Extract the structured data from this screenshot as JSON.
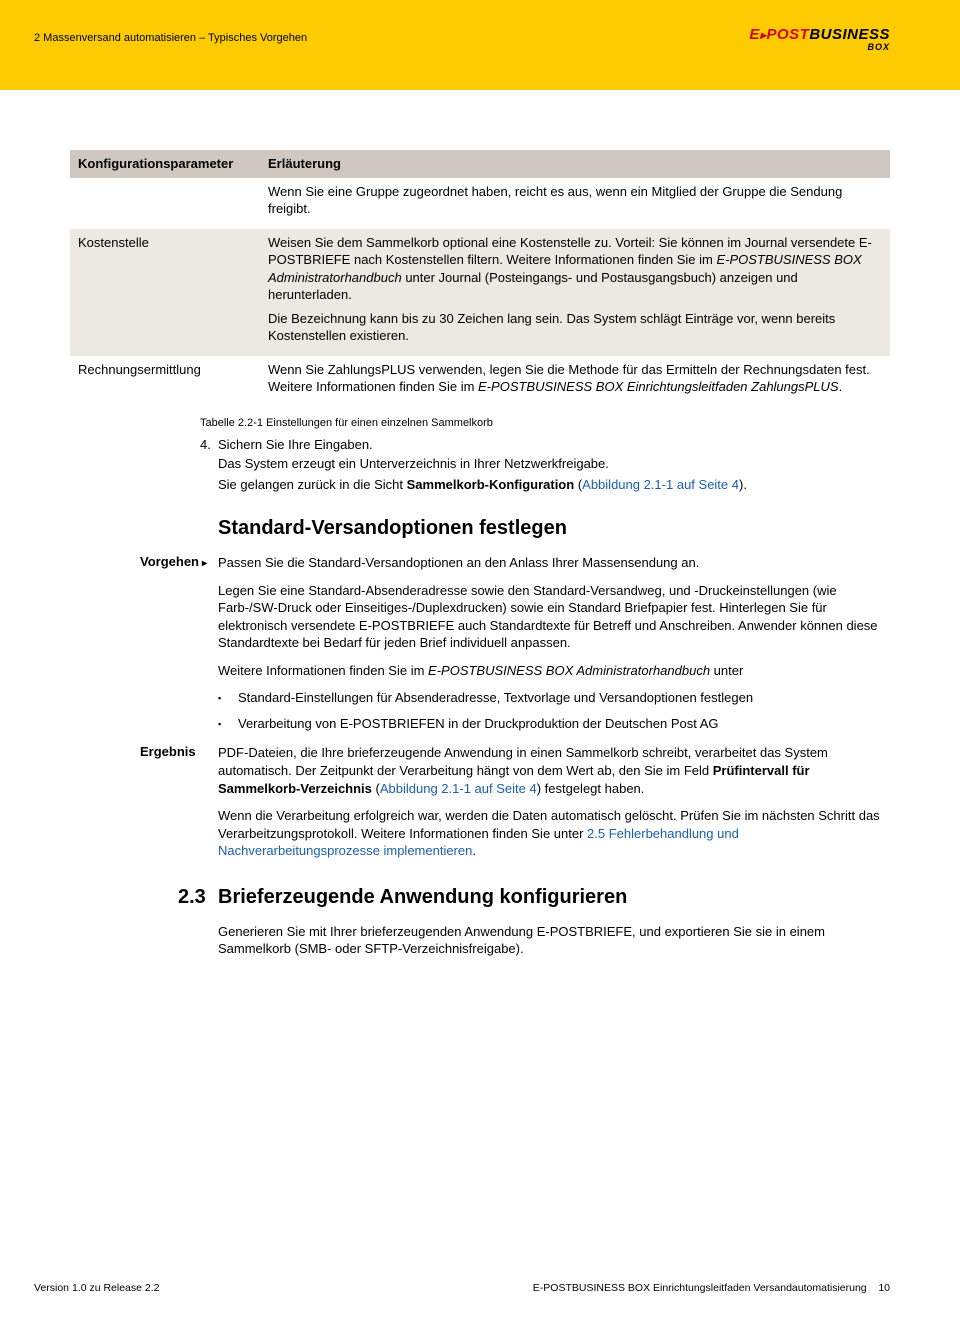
{
  "header": {
    "breadcrumb": "2    Massenversand automatisieren – Typisches Vorgehen",
    "logo_e": "E",
    "logo_post": "POST",
    "logo_business": "BUSINESS",
    "logo_sub": "BOX"
  },
  "table": {
    "header_param": "Konfigurationsparameter",
    "header_desc": "Erläuterung",
    "rows": [
      {
        "param": "",
        "desc_paras": [
          "Wenn Sie eine Gruppe zugeordnet haben, reicht es aus, wenn ein Mitglied der Gruppe die Sendung freigibt."
        ]
      },
      {
        "param": "Kostenstelle",
        "desc_paras": [
          "Weisen Sie dem Sammelkorb optional eine Kostenstelle zu. Vorteil: Sie können im Journal versendete E-POSTBRIEFE nach Kostenstellen filtern. Weitere Informationen finden Sie im E-POSTBUSINESS BOX Administratorhandbuch unter Journal (Posteingangs- und Postausgangsbuch) anzeigen und herunterladen.",
          "Die Bezeichnung kann bis zu 30 Zeichen lang sein. Das System schlägt Einträge vor, wenn bereits Kostenstellen existieren."
        ]
      },
      {
        "param": "Rechnungsermittlung",
        "desc_paras": [
          "Wenn Sie ZahlungsPLUS verwenden, legen Sie die Methode für das Ermitteln der Rechnungsdaten fest. Weitere Informationen finden Sie im E-POSTBUSINESS BOX Einrichtungsleitfaden ZahlungsPLUS."
        ]
      }
    ],
    "caption": "Tabelle 2.2-1 Einstellungen für einen einzelnen Sammelkorb"
  },
  "step4": {
    "num": "4.",
    "text": "Sichern Sie Ihre Eingaben."
  },
  "after_step": {
    "p1": "Das System erzeugt ein Unterverzeichnis in Ihrer Netzwerkfreigabe.",
    "p2a": "Sie gelangen zurück in die Sicht ",
    "p2b": "Sammelkorb-Konfiguration",
    "p2c": " (",
    "p2link": "Abbildung 2.1-1 auf Seite 4",
    "p2d": ")."
  },
  "h2_standard": "Standard-Versandoptionen festlegen",
  "vorgehen": {
    "label": "Vorgehen",
    "p1": "Passen Sie die Standard-Versandoptionen an den Anlass Ihrer Massensendung an.",
    "p2": "Legen Sie eine Standard-Absenderadresse sowie den Standard-Versandweg, und -Druckeinstellungen (wie Farb-/SW-Druck oder Einseitiges-/Duplexdrucken) sowie ein Standard Briefpapier fest. Hinterlegen Sie für elektronisch versendete E-POSTBRIEFE auch Standardtexte für Betreff und Anschreiben. Anwender können diese Standardtexte bei Bedarf für jeden Brief individuell anpassen.",
    "p3a": "Weitere Informationen finden Sie im ",
    "p3b": "E-POSTBUSINESS BOX Administratorhandbuch",
    "p3c": " unter",
    "bullets": [
      "Standard-Einstellungen für Absenderadresse, Textvorlage und Versandoptionen festlegen",
      "Verarbeitung von E-POSTBRIEFEN in der Druckproduktion der Deutschen Post AG"
    ]
  },
  "ergebnis": {
    "label": "Ergebnis",
    "p1a": "PDF-Dateien, die Ihre brieferzeugende Anwendung in einen Sammelkorb schreibt, verarbeitet das System automatisch. Der Zeitpunkt der Verarbeitung hängt von dem Wert ab, den Sie im Feld ",
    "p1b": "Prüfintervall für Sammelkorb-Verzeichnis",
    "p1c": " (",
    "p1link": "Abbildung 2.1-1 auf Seite 4",
    "p1d": ") festgelegt haben.",
    "p2a": "Wenn die Verarbeitung erfolgreich war, werden die Daten automatisch gelöscht. Prüfen Sie im nächsten Schritt das Verarbeitzungsprotokoll. Weitere Informationen finden Sie unter ",
    "p2link": "2.5 Fehlerbehandlung und Nachverarbeitungsprozesse implementieren",
    "p2b": "."
  },
  "sec23": {
    "num": "2.3",
    "title": "Brieferzeugende Anwendung konfigurieren",
    "p1": "Generieren Sie mit Ihrer brieferzeugenden Anwendung E-POSTBRIEFE, und exportieren Sie sie in einem Sammelkorb (SMB- oder SFTP-Verzeichnisfreigabe)."
  },
  "footer": {
    "left": "Version 1.0 zu Release 2.2",
    "right_a": "E-POSTBUSINESS BOX",
    "right_b": "  Einrichtungsleitfaden Versandautomatisierung",
    "page": "10"
  }
}
